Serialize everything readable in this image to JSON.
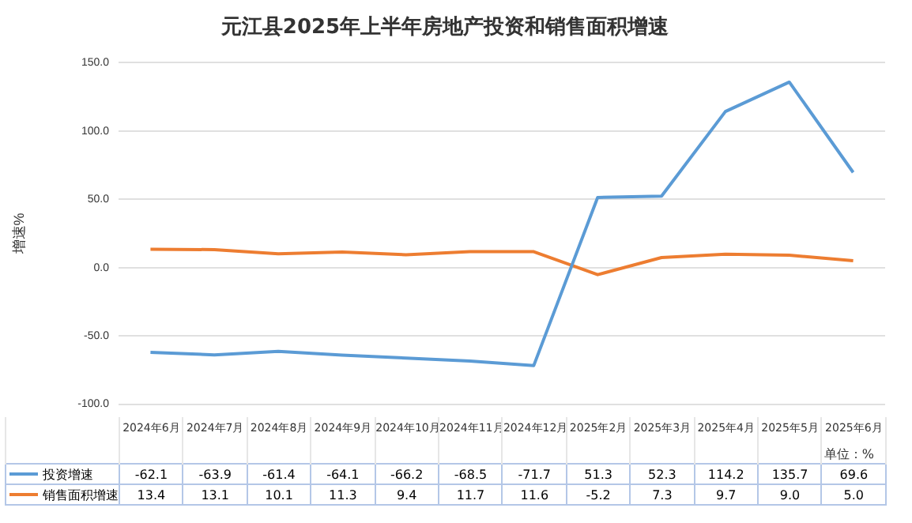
{
  "chart_data": {
    "type": "line",
    "title": "元江县2025年上半年房地产投资和销售面积增速",
    "ylabel": "增速%",
    "categories": [
      "2024年6月",
      "2024年7月",
      "2024年8月",
      "2024年9月",
      "2024年10月",
      "2024年11月",
      "2024年12月",
      "2025年2月",
      "2025年3月",
      "2025年4月",
      "2025年5月",
      "2025年6月"
    ],
    "series": [
      {
        "name": "投资增速",
        "color": "#5b9bd5",
        "values": [
          -62.1,
          -63.9,
          -61.4,
          -64.1,
          -66.2,
          -68.5,
          -71.7,
          51.3,
          52.3,
          114.2,
          135.7,
          69.6
        ],
        "value_labels": [
          "-62.1",
          "-63.9",
          "-61.4",
          "-64.1",
          "-66.2",
          "-68.5",
          "-71.7",
          "51.3",
          "52.3",
          "114.2",
          "135.7",
          "69.6"
        ]
      },
      {
        "name": "销售面积增速",
        "color": "#ed7d31",
        "values": [
          13.4,
          13.1,
          10.1,
          11.3,
          9.4,
          11.7,
          11.6,
          -5.2,
          7.3,
          9.7,
          9.0,
          5.0
        ],
        "value_labels": [
          "13.4",
          "13.1",
          "10.1",
          "11.3",
          "9.4",
          "11.7",
          "11.6",
          "-5.2",
          "7.3",
          "9.7",
          "9.0",
          "5.0"
        ]
      }
    ],
    "ylim": [
      -100,
      150
    ],
    "yticks": [
      {
        "value": -100,
        "label": "-100.0"
      },
      {
        "value": -50,
        "label": "-50.0"
      },
      {
        "value": 0,
        "label": "0.0"
      },
      {
        "value": 50,
        "label": "50.0"
      },
      {
        "value": 100,
        "label": "100.0"
      },
      {
        "value": 150,
        "label": "150.0"
      }
    ],
    "grid": "y",
    "legend": "bottom",
    "tick_labels": "y",
    "marker": "none",
    "line_style": "solid",
    "annotations": [
      "单位：%"
    ]
  }
}
